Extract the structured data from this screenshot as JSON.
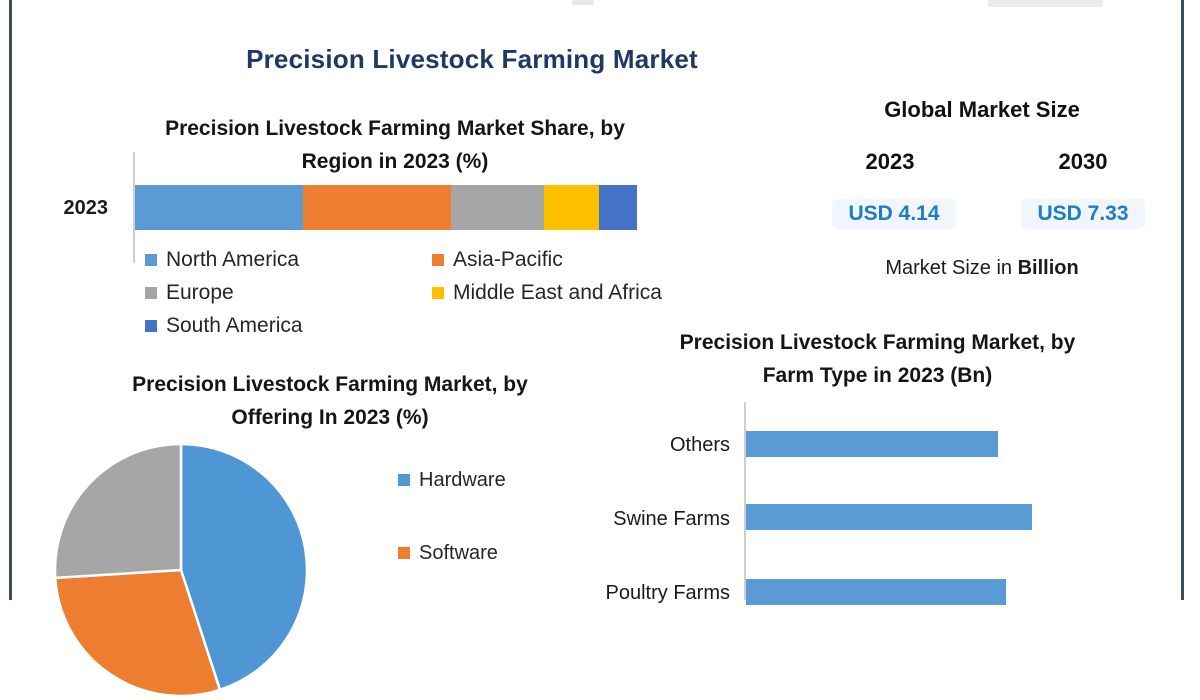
{
  "header": {
    "title": "Precision Livestock Farming Market",
    "title_color": "#1f3864"
  },
  "market_size": {
    "title": "Global Market Size",
    "year_left": "2023",
    "year_right": "2030",
    "value_left": "USD 4.14",
    "value_right": "USD 7.33",
    "value_color": "#1e7cc1",
    "caption_prefix": "Market Size in ",
    "caption_bold": "Billion"
  },
  "chart_data": [
    {
      "type": "bar",
      "subtype": "stacked-horizontal-100pct",
      "title": "Precision Livestock Farming Market Share, by\nRegion in 2023 (%)",
      "categories": [
        "2023"
      ],
      "series": [
        {
          "name": "North America",
          "values": [
            33.5
          ],
          "color": "#5B9BD5"
        },
        {
          "name": "Asia-Pacific",
          "values": [
            29.5
          ],
          "color": "#ED7D31"
        },
        {
          "name": "Europe",
          "values": [
            18.5
          ],
          "color": "#A5A5A5"
        },
        {
          "name": "Middle East and Africa",
          "values": [
            11
          ],
          "color": "#FFC000"
        },
        {
          "name": "South America",
          "values": [
            7.5
          ],
          "color": "#4472C4"
        }
      ],
      "legend_position": "bottom",
      "values_estimated_from_pixels": true
    },
    {
      "type": "pie",
      "title": "Precision Livestock Farming Market, by\nOffering In 2023 (%)",
      "slices": [
        {
          "label": "Hardware",
          "value": 45,
          "color": "#4F97D4"
        },
        {
          "label": "Software",
          "value": 29,
          "color": "#ED7D31"
        },
        {
          "label": "",
          "value": 26,
          "color": "#A6A6A6"
        }
      ],
      "legend_visible": [
        "Hardware",
        "Software"
      ],
      "start_angle_deg": 0,
      "values_estimated_from_pixels": true
    },
    {
      "type": "bar",
      "subtype": "horizontal",
      "title": "Precision Livestock Farming Market, by\nFarm Type in 2023 (Bn)",
      "categories": [
        "Others",
        "Swine Farms",
        "Poultry Farms"
      ],
      "values": [
        0.88,
        1.0,
        0.91
      ],
      "bar_color": "#5B9BD5",
      "axis_labels_visible": false,
      "values_estimated_from_pixels": true
    }
  ]
}
